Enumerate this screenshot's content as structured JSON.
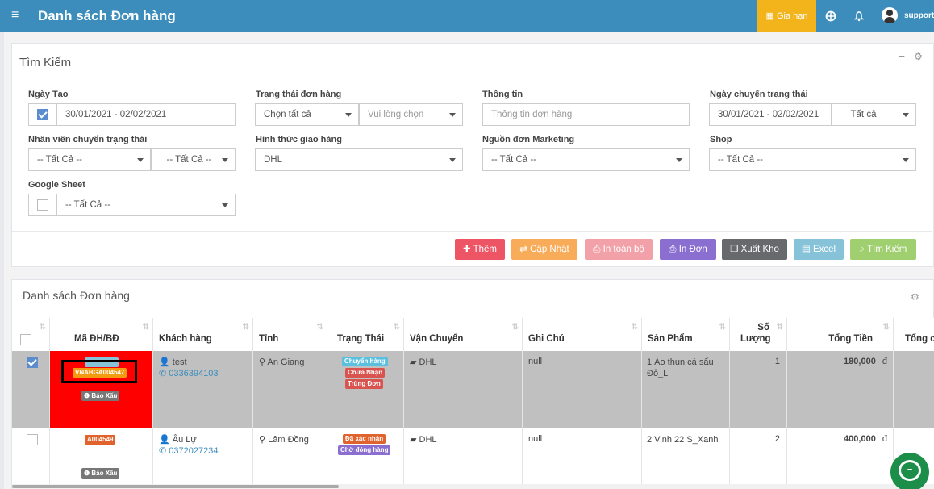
{
  "topbar": {
    "title": "Danh sách Đơn hàng",
    "renew_label": "Gia hạn",
    "username": "support"
  },
  "search": {
    "title": "Tìm Kiếm",
    "created_date_label": "Ngày Tạo",
    "created_date_value": "30/01/2021 - 02/02/2021",
    "order_status_label": "Trạng thái đơn hàng",
    "order_status_value": "Chọn tất cả",
    "order_status_sub_placeholder": "Vui lòng chọn",
    "info_label": "Thông tin",
    "info_placeholder": "Thông tin đơn hàng",
    "status_change_date_label": "Ngày chuyển trạng thái",
    "status_change_date_value": "30/01/2021 - 02/02/2021",
    "status_change_date_option": "Tất cả",
    "staff_label": "Nhân viên chuyển trạng thái",
    "staff_value": "-- Tất Cả --",
    "staff_value2": "-- Tất Cả --",
    "shipping_label": "Hình thức giao hàng",
    "shipping_value": "DHL",
    "marketing_label": "Nguồn đơn Marketing",
    "marketing_value": "-- Tất Cả --",
    "shop_label": "Shop",
    "shop_value": "-- Tất Cả --",
    "gsheet_label": "Google Sheet",
    "gsheet_value": "-- Tất Cả --"
  },
  "actions": {
    "add": "Thêm",
    "update": "Cập Nhật",
    "print_all": "In toàn bộ",
    "print_order": "In Đơn",
    "export_stock": "Xuất Kho",
    "excel": "Excel",
    "search": "Tìm Kiếm"
  },
  "orders": {
    "title": "Danh sách Đơn hàng",
    "columns": [
      "Mã ĐH/BĐ",
      "Khách hàng",
      "Tỉnh",
      "Trạng Thái",
      "Vận Chuyển",
      "Ghi Chú",
      "Sản Phẩm",
      "Số Lượng",
      "Tổng Tiền",
      "Tổng c"
    ],
    "rows": [
      {
        "top_code": "A00000",
        "code": "VNABGA004547",
        "report": "Báo Xấu",
        "customer": "test",
        "phone": "0336394103",
        "province": "An Giang",
        "statuses": [
          "Chuyển hàng",
          "Chưa Nhận",
          "Trùng Đơn"
        ],
        "shipping": "DHL",
        "note": "null",
        "product": "1 Áo thun cá sấu Đỏ_L",
        "qty": "1",
        "total": "180,000",
        "currency": "đ"
      },
      {
        "code": "A004549",
        "report": "Báo Xấu",
        "customer": "Âu Lự",
        "phone": "0372027234",
        "province": "Lâm Đồng",
        "statuses": [
          "Đã xác nhận",
          "Chờ đóng hàng"
        ],
        "shipping": "DHL",
        "note": "null",
        "product": "2 Vinh 22 S_Xanh",
        "qty": "2",
        "total": "400,000",
        "currency": "đ"
      }
    ]
  },
  "colors": {
    "topbar": "#3c8dbc",
    "renew": "#f3b31b",
    "add": "#ed5565",
    "update": "#f8ac59",
    "print_all": "#f3a1a8",
    "print_order": "#8a6fd1",
    "export_stock": "#676a6c",
    "excel": "#86c3d9",
    "search": "#9fcf6e",
    "selected_row": "#c0c0c0",
    "code_cell": "#ff0000"
  }
}
